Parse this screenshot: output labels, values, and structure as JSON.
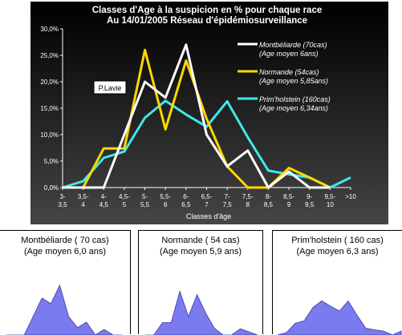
{
  "chart_data": {
    "type": "line",
    "title": "Classes d'Age à la suspicion en % pour chaque race",
    "subtitle": "Au 14/01/2005  Réseau d'épidémiosurveillance",
    "xlabel": "Classes d'âge",
    "ylabel": "",
    "ylim": [
      0,
      30
    ],
    "yticks": [
      "0,0%",
      "5,0%",
      "10,0%",
      "15,0%",
      "20,0%",
      "25,0%",
      "30,0%"
    ],
    "grid": false,
    "legend_position": "top-right",
    "annotation": "P.Lavie",
    "categories": [
      [
        "3-",
        "3,5"
      ],
      [
        "3,5-",
        "4"
      ],
      [
        "4-",
        "4,5"
      ],
      [
        "4,5-",
        "5"
      ],
      [
        "5-",
        "5,5"
      ],
      [
        "5,5-",
        "6"
      ],
      [
        "6-",
        "6,5"
      ],
      [
        "6,5-",
        "7"
      ],
      [
        "7-",
        "7,5"
      ],
      [
        "7,5-",
        "8"
      ],
      [
        "8-",
        "8,5"
      ],
      [
        "8,5-",
        "9"
      ],
      [
        "9-",
        "9,5"
      ],
      [
        "9,5-",
        "10"
      ],
      [
        ">10",
        ""
      ]
    ],
    "series": [
      {
        "name": "Montbéliarde (70cas)",
        "name2": "(Age moyen 6ans)",
        "color": "#ffffff",
        "values": [
          0,
          0,
          0,
          10,
          20,
          17,
          27,
          10,
          4,
          7,
          0,
          3,
          0,
          0,
          null
        ]
      },
      {
        "name": "Normande (54cas)",
        "name2": "(Age moyen 5,85ans)",
        "color": "#ffd700",
        "values": [
          0,
          0,
          7.4,
          7.4,
          26,
          11,
          24,
          13,
          4,
          0,
          0,
          3.7,
          1.9,
          0,
          null
        ]
      },
      {
        "name": "Prim'holstein (160cas)",
        "name2": "(Age moyen 6,34ans)",
        "color": "#40e8e8",
        "values": [
          0,
          1.2,
          5.6,
          6.8,
          13.2,
          16.4,
          13.8,
          11.5,
          16.3,
          9.5,
          3.2,
          2.5,
          1.9,
          0,
          1.9
        ]
      }
    ]
  },
  "panels": [
    {
      "title1": "Montbéliarde ( 70 cas)",
      "title2": "(Age moyen 6,0 ans)",
      "values": [
        0,
        0,
        0,
        10,
        20,
        17,
        27,
        10,
        4,
        7,
        0,
        3,
        0,
        0
      ]
    },
    {
      "title1": "Normande ( 54 cas)",
      "title2": "(Age moyen 5,9 ans)",
      "values": [
        0,
        0,
        7.4,
        7.4,
        26,
        11,
        24,
        13,
        4,
        0,
        0,
        3.7,
        1.9,
        0
      ]
    },
    {
      "title1": "Prim'holstein ( 160 cas)",
      "title2": "(Age moyen 6,3 ans)",
      "values": [
        0,
        1.2,
        5.6,
        6.8,
        13.2,
        16.4,
        13.8,
        11.5,
        16.3,
        9.5,
        3.2,
        2.5,
        1.9,
        0,
        1.9
      ]
    }
  ],
  "colors": {
    "background": "#000000",
    "axis": "#ffffff",
    "text": "#ffffff",
    "panel_fill": "#7b7bf0",
    "panel_stroke": "#3a3aa0"
  }
}
